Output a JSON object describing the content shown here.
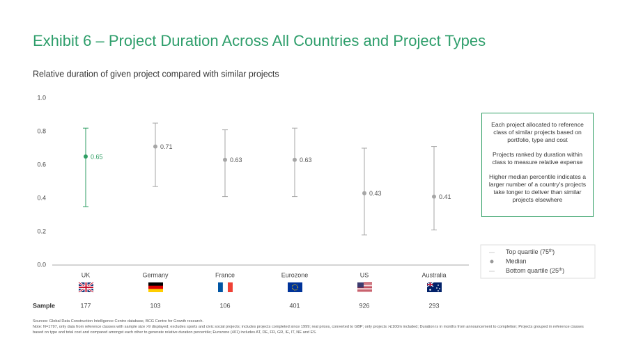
{
  "chart_data": {
    "type": "range",
    "title": "Exhibit 6 – Project Duration Across All Countries and Project Types",
    "subtitle": "Relative duration of given project compared with similar projects",
    "categories": [
      "UK",
      "Germany",
      "France",
      "Eurozone",
      "US",
      "Australia"
    ],
    "colors": [
      "#2e9e63",
      "#a6a6a6",
      "#a6a6a6",
      "#a6a6a6",
      "#a6a6a6",
      "#a6a6a6"
    ],
    "series": [
      {
        "name": "Top quartile (75",
        "name_sup": "th",
        "name_end": ")",
        "values": [
          0.82,
          0.85,
          0.81,
          0.82,
          0.7,
          0.71
        ]
      },
      {
        "name": "Median",
        "values": [
          0.65,
          0.71,
          0.63,
          0.63,
          0.43,
          0.41
        ]
      },
      {
        "name": "Bottom quartile (25",
        "name_sup": "th",
        "name_end": ")",
        "values": [
          0.35,
          0.47,
          0.41,
          0.41,
          0.18,
          0.21
        ]
      }
    ],
    "ylim": [
      0,
      1
    ],
    "yticks": [
      {
        "value": 0,
        "label": "0.0"
      },
      0.2,
      0.4,
      0.6,
      0.8,
      {
        "value": 1,
        "label": "1.0"
      }
    ],
    "sample_label": "Sample",
    "sample": [
      177,
      103,
      106,
      401,
      926,
      293
    ],
    "annotation": [
      "Each project allocated to reference class of similar projects based on portfolio, type and cost",
      "Projects ranked by duration within class to measure relative expense",
      "Higher median percentile indicates a larger number of a country's projects take longer to deliver than similar projects elsewhere"
    ],
    "sources": "Sources: Global Data Construction Intelligence Centre database, BCG Centre for Growth research.",
    "note": "Note: N=1797, only data from reference classes with sample size >9 displayed; excludes sports and civic social projects; includes projects completed since 1999; real prices, converted to GBP; only projects >£100m included; Duration is in months from announcement to completion; Projects grouped in reference classes based on type and total cost and compared amongst each other to generate relative duration percentile; Eurozone (401) includes AT, DE, FR, GR, IE, IT, NE and ES."
  }
}
